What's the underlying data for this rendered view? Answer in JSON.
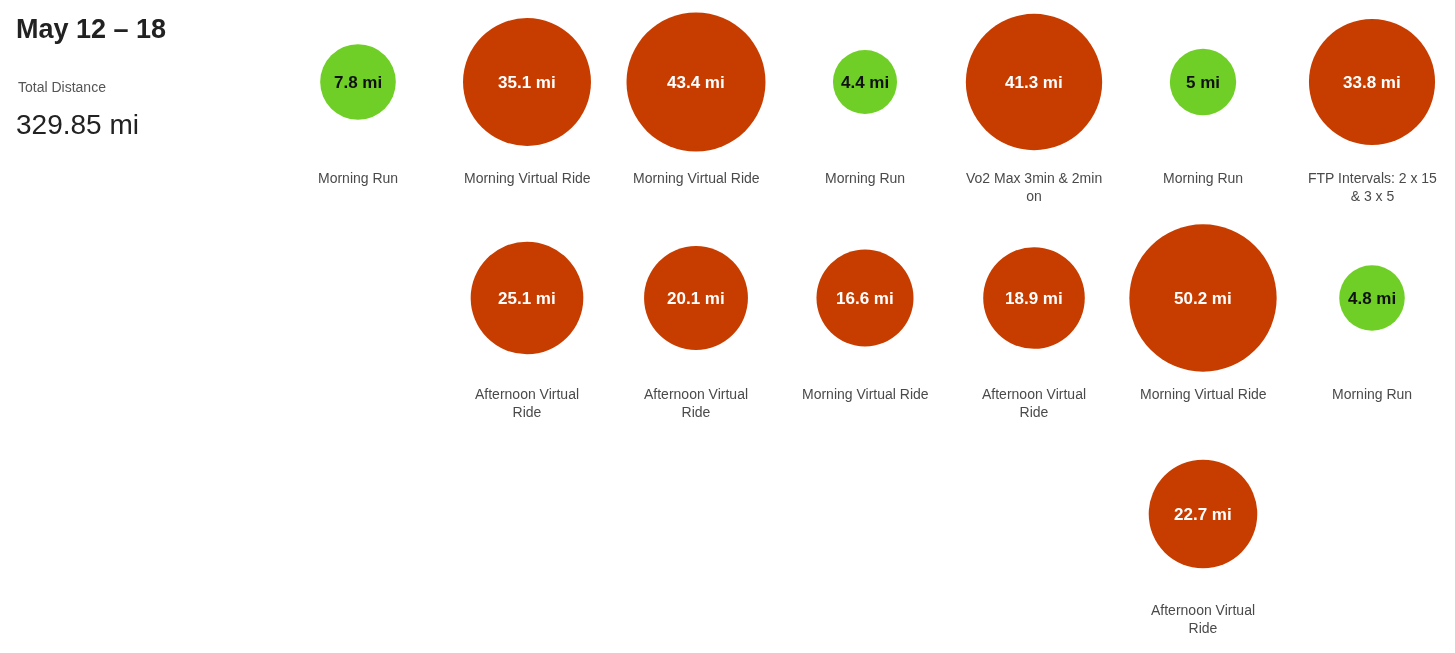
{
  "chart_data": {
    "type": "other",
    "data_labels": true,
    "title": "May 12 – 18",
    "categories": [
      "Morning Run",
      "Morning Virtual Ride",
      "Morning Virtual Ride",
      "Morning Run",
      "Vo2 Max 3min & 2min on",
      "Morning Run",
      "FTP Intervals: 2 x 15 & 3 x 5",
      "Afternoon Virtual Ride",
      "Afternoon Virtual Ride",
      "Morning Virtual Ride",
      "Afternoon Virtual Ride",
      "Morning Virtual Ride",
      "Morning Run",
      "Afternoon Virtual Ride"
    ],
    "values": [
      7.8,
      35.1,
      43.4,
      4.4,
      41.3,
      5,
      33.8,
      25.1,
      20.1,
      16.6,
      18.9,
      50.2,
      4.8,
      22.7
    ],
    "colors": [
      "#6fcf26",
      "#c73d00",
      "#c73d00",
      "#6fcf26",
      "#c73d00",
      "#6fcf26",
      "#c73d00",
      "#c73d00",
      "#c73d00",
      "#c73d00",
      "#c73d00",
      "#c73d00",
      "#6fcf26",
      "#c73d00"
    ],
    "value_labels": [
      "7.8 mi",
      "35.1 mi",
      "43.4 mi",
      "4.4 mi",
      "41.3 mi",
      "5 mi",
      "33.8 mi",
      "25.1 mi",
      "20.1 mi",
      "16.6 mi",
      "18.9 mi",
      "50.2 mi",
      "4.8 mi",
      "22.7 mi"
    ],
    "annotations": [
      "Total Distance",
      "329.85 mi"
    ]
  }
}
